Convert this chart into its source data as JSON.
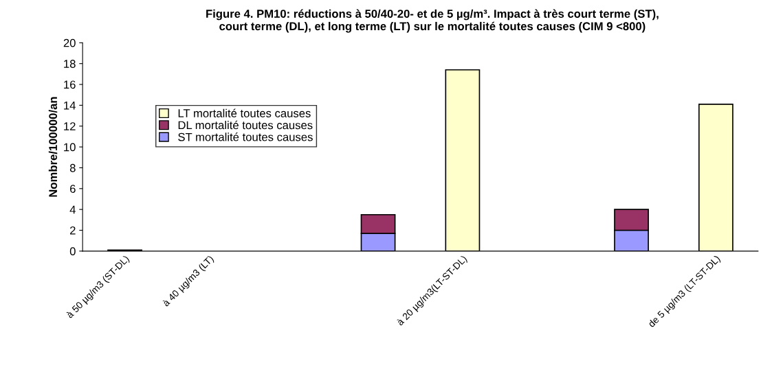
{
  "chart_data": {
    "type": "bar",
    "title": "Figure 4. PM10: réductions à 50/40-20- et de 5 µg/m³. Impact à très court terme (ST),\ncourt terme (DL), et long terme (LT) sur le mortalité toutes causes (CIM 9 <800)",
    "ylabel": "Nombre/100000/an",
    "categories": [
      "à 50 µg/m3 (ST-DL)",
      "à 40 µg/m3 (LT)",
      null,
      null,
      "à 20 µg/m3(LT-ST-DL)",
      null,
      null,
      "de 5 µg/m3 (LT-ST-DL)"
    ],
    "stacked": true,
    "series": [
      {
        "name": "ST mortalité toutes causes",
        "color": "#9999ff",
        "values": [
          null,
          null,
          null,
          1.7,
          null,
          null,
          2.0,
          null
        ]
      },
      {
        "name": "DL mortalité toutes causes",
        "color": "#993366",
        "values": [
          0.1,
          null,
          null,
          1.8,
          null,
          null,
          2.0,
          null
        ]
      },
      {
        "name": "LT mortalité toutes causes",
        "color": "#ffffcc",
        "values": [
          null,
          null,
          null,
          null,
          17.4,
          null,
          null,
          14.1
        ]
      }
    ],
    "ylim": [
      0,
      20
    ],
    "yticks": [
      0,
      2,
      4,
      6,
      8,
      10,
      12,
      14,
      16,
      18,
      20
    ],
    "grid": false,
    "legend": "center left"
  }
}
